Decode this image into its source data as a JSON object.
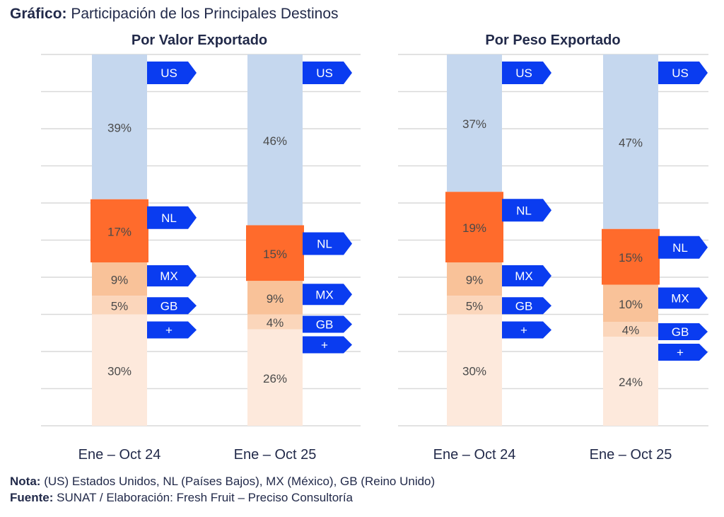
{
  "title": {
    "bold": "Gráfico:",
    "text": "Participación de los Principales Destinos"
  },
  "colors": {
    "US": "#c5d7ee",
    "NL": "#ff6b2c",
    "MX": "#f9c299",
    "GB": "#fbd6bb",
    "+": "#fde9dc",
    "tag": "#0a3cf0",
    "grid": "#d9d9d9",
    "label": "#4a4a4a"
  },
  "chart_data": [
    {
      "type": "bar",
      "stacked": true,
      "title": "Por Valor Exportado",
      "categories": [
        "Ene – Oct 24",
        "Ene – Oct 25"
      ],
      "ylim": [
        0,
        100
      ],
      "grid": true,
      "series": [
        {
          "name": "US",
          "values": [
            39,
            46
          ]
        },
        {
          "name": "NL",
          "values": [
            17,
            15
          ]
        },
        {
          "name": "MX",
          "values": [
            9,
            9
          ]
        },
        {
          "name": "GB",
          "values": [
            5,
            4
          ]
        },
        {
          "name": "+",
          "values": [
            30,
            26
          ]
        }
      ]
    },
    {
      "type": "bar",
      "stacked": true,
      "title": "Por Peso Exportado",
      "categories": [
        "Ene – Oct 24",
        "Ene – Oct 25"
      ],
      "ylim": [
        0,
        100
      ],
      "grid": true,
      "series": [
        {
          "name": "US",
          "values": [
            37,
            47
          ]
        },
        {
          "name": "NL",
          "values": [
            19,
            15
          ]
        },
        {
          "name": "MX",
          "values": [
            9,
            10
          ]
        },
        {
          "name": "GB",
          "values": [
            5,
            4
          ]
        },
        {
          "name": "+",
          "values": [
            30,
            24
          ]
        }
      ]
    }
  ],
  "note": {
    "bold": "Nota:",
    "text": "(US) Estados Unidos, NL (Países Bajos), MX (México), GB (Reino Unido)"
  },
  "source": {
    "bold": "Fuente:",
    "text": "SUNAT / Elaboración: Fresh Fruit – Preciso Consultoría"
  }
}
